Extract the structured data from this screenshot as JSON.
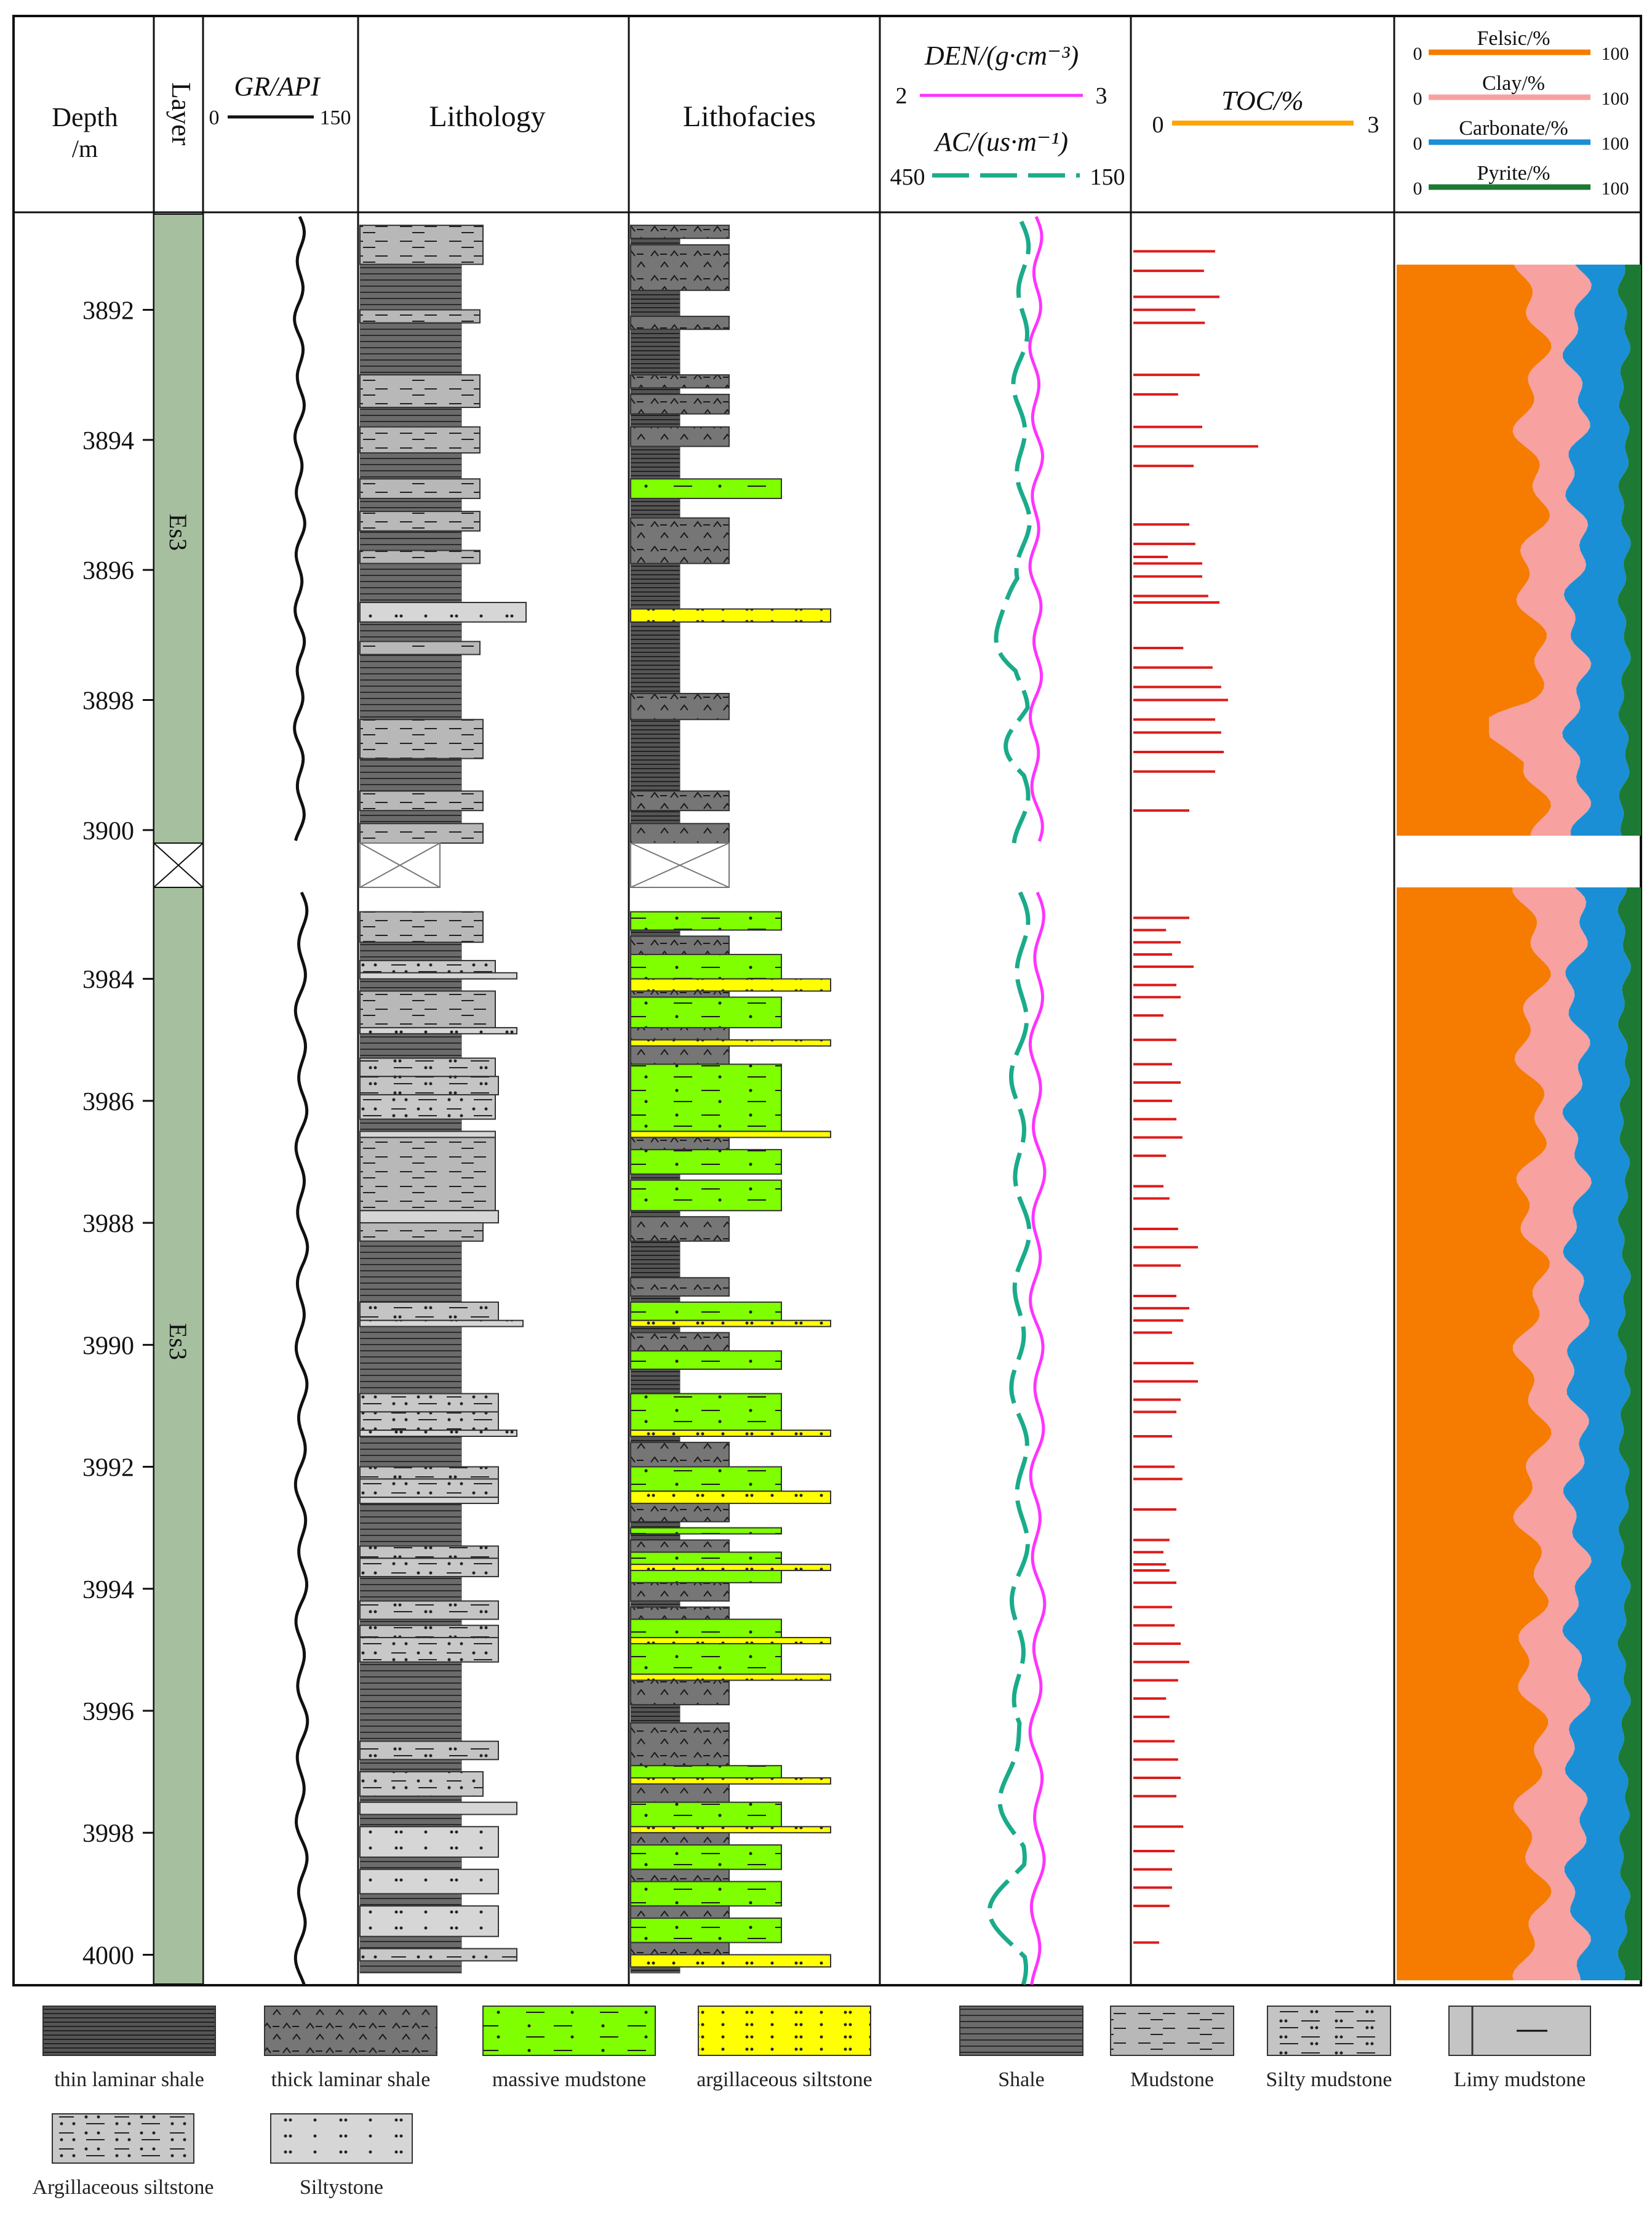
{
  "headers": {
    "depth": [
      "Depth",
      "/m"
    ],
    "layer": "Layer",
    "gr": {
      "label": "GR/API",
      "min": "0",
      "max": "150"
    },
    "lithology": "Lithology",
    "lithofacies": "Lithofacies",
    "den": {
      "label": "DEN/(g·cm⁻³)",
      "min": "2",
      "max": "3"
    },
    "ac": {
      "label": "AC/(us·m⁻¹)",
      "min": "450",
      "max": "150"
    },
    "toc": {
      "label": "TOC/%",
      "min": "0",
      "max": "3"
    },
    "minerals": [
      {
        "label": "Felsic/%",
        "min": "0",
        "max": "100",
        "color": "#f57c00"
      },
      {
        "label": "Clay/%",
        "min": "0",
        "max": "100",
        "color": "#f7a1a1"
      },
      {
        "label": "Carbonate/%",
        "min": "0",
        "max": "100",
        "color": "#1a8fd6"
      },
      {
        "label": "Pyrite/%",
        "min": "0",
        "max": "100",
        "color": "#1d7a34"
      }
    ]
  },
  "layers": [
    "Es3",
    "Es3"
  ],
  "depth_ticks_upper": [
    "3892",
    "3894",
    "3896",
    "3898",
    "3900"
  ],
  "depth_ticks_lower": [
    "3984",
    "3986",
    "3988",
    "3990",
    "3992",
    "3994",
    "3996",
    "3998",
    "4000"
  ],
  "legend": [
    {
      "label": "thin laminar shale",
      "type": "thin-laminar"
    },
    {
      "label": "thick laminar shale",
      "type": "thick-laminar"
    },
    {
      "label": "massive  mudstone",
      "type": "massive"
    },
    {
      "label": "argillaceous siltstone",
      "type": "arg-silt-facies"
    },
    {
      "label": "Shale",
      "type": "shale"
    },
    {
      "label": "Mudstone",
      "type": "mudstone"
    },
    {
      "label": "Silty mudstone",
      "type": "silty-mud"
    },
    {
      "label": "Limy mudstone",
      "type": "limy-mud"
    },
    {
      "label": "Argillaceous siltstone",
      "type": "arg-silt"
    },
    {
      "label": "Siltystone",
      "type": "siltstone"
    }
  ],
  "colors": {
    "layer_fill": "#a5bf9f",
    "shale": "#6b6b6b",
    "gray_light": "#b8b8b8",
    "massive": "#7fff00",
    "arg_silt": "#ffff00",
    "den_line": "#ff33ff",
    "ac_line": "#1aab8a",
    "toc_line": "#dd1b1b",
    "toc_header": "#ffa500"
  },
  "chart_data": {
    "type": "well-log",
    "intervals": [
      {
        "top": 3890.5,
        "base": 3900.2
      },
      {
        "top": 3982.5,
        "base": 4000.5
      }
    ],
    "toc": [
      {
        "depth": 3891.1,
        "toc": 0.95
      },
      {
        "depth": 3891.4,
        "toc": 0.82
      },
      {
        "depth": 3891.8,
        "toc": 1.0
      },
      {
        "depth": 3892.0,
        "toc": 0.72
      },
      {
        "depth": 3892.2,
        "toc": 0.83
      },
      {
        "depth": 3893.0,
        "toc": 0.77
      },
      {
        "depth": 3893.3,
        "toc": 0.52
      },
      {
        "depth": 3893.8,
        "toc": 0.8
      },
      {
        "depth": 3894.1,
        "toc": 1.45
      },
      {
        "depth": 3894.4,
        "toc": 0.7
      },
      {
        "depth": 3895.3,
        "toc": 0.65
      },
      {
        "depth": 3895.6,
        "toc": 0.72
      },
      {
        "depth": 3895.8,
        "toc": 0.4
      },
      {
        "depth": 3895.9,
        "toc": 0.8
      },
      {
        "depth": 3896.1,
        "toc": 0.8
      },
      {
        "depth": 3896.4,
        "toc": 0.87
      },
      {
        "depth": 3896.5,
        "toc": 1.0
      },
      {
        "depth": 3897.2,
        "toc": 0.58
      },
      {
        "depth": 3897.5,
        "toc": 0.92
      },
      {
        "depth": 3897.8,
        "toc": 1.02
      },
      {
        "depth": 3898.0,
        "toc": 1.1
      },
      {
        "depth": 3898.3,
        "toc": 0.95
      },
      {
        "depth": 3898.5,
        "toc": 1.02
      },
      {
        "depth": 3898.8,
        "toc": 1.05
      },
      {
        "depth": 3899.1,
        "toc": 0.95
      },
      {
        "depth": 3899.7,
        "toc": 0.65
      },
      {
        "depth": 3983.0,
        "toc": 0.65
      },
      {
        "depth": 3983.2,
        "toc": 0.38
      },
      {
        "depth": 3983.4,
        "toc": 0.55
      },
      {
        "depth": 3983.6,
        "toc": 0.45
      },
      {
        "depth": 3983.8,
        "toc": 0.7
      },
      {
        "depth": 3984.1,
        "toc": 0.5
      },
      {
        "depth": 3984.3,
        "toc": 0.55
      },
      {
        "depth": 3984.6,
        "toc": 0.35
      },
      {
        "depth": 3985.0,
        "toc": 0.5
      },
      {
        "depth": 3985.4,
        "toc": 0.45
      },
      {
        "depth": 3985.7,
        "toc": 0.55
      },
      {
        "depth": 3986.0,
        "toc": 0.45
      },
      {
        "depth": 3986.3,
        "toc": 0.5
      },
      {
        "depth": 3986.6,
        "toc": 0.57
      },
      {
        "depth": 3986.9,
        "toc": 0.38
      },
      {
        "depth": 3987.4,
        "toc": 0.35
      },
      {
        "depth": 3987.6,
        "toc": 0.42
      },
      {
        "depth": 3988.1,
        "toc": 0.52
      },
      {
        "depth": 3988.4,
        "toc": 0.75
      },
      {
        "depth": 3988.7,
        "toc": 0.55
      },
      {
        "depth": 3989.2,
        "toc": 0.5
      },
      {
        "depth": 3989.4,
        "toc": 0.65
      },
      {
        "depth": 3989.6,
        "toc": 0.58
      },
      {
        "depth": 3989.8,
        "toc": 0.45
      },
      {
        "depth": 3990.3,
        "toc": 0.7
      },
      {
        "depth": 3990.6,
        "toc": 0.75
      },
      {
        "depth": 3990.9,
        "toc": 0.55
      },
      {
        "depth": 3991.1,
        "toc": 0.5
      },
      {
        "depth": 3991.5,
        "toc": 0.45
      },
      {
        "depth": 3992.0,
        "toc": 0.48
      },
      {
        "depth": 3992.2,
        "toc": 0.57
      },
      {
        "depth": 3992.7,
        "toc": 0.5
      },
      {
        "depth": 3993.2,
        "toc": 0.42
      },
      {
        "depth": 3993.4,
        "toc": 0.35
      },
      {
        "depth": 3993.6,
        "toc": 0.38
      },
      {
        "depth": 3993.7,
        "toc": 0.42
      },
      {
        "depth": 3993.9,
        "toc": 0.5
      },
      {
        "depth": 3994.3,
        "toc": 0.45
      },
      {
        "depth": 3994.6,
        "toc": 0.48
      },
      {
        "depth": 3994.9,
        "toc": 0.55
      },
      {
        "depth": 3995.2,
        "toc": 0.65
      },
      {
        "depth": 3995.5,
        "toc": 0.52
      },
      {
        "depth": 3995.8,
        "toc": 0.38
      },
      {
        "depth": 3996.1,
        "toc": 0.42
      },
      {
        "depth": 3996.5,
        "toc": 0.48
      },
      {
        "depth": 3996.8,
        "toc": 0.52
      },
      {
        "depth": 3997.1,
        "toc": 0.55
      },
      {
        "depth": 3997.4,
        "toc": 0.5
      },
      {
        "depth": 3997.9,
        "toc": 0.58
      },
      {
        "depth": 3998.3,
        "toc": 0.48
      },
      {
        "depth": 3998.6,
        "toc": 0.45
      },
      {
        "depth": 3998.9,
        "toc": 0.45
      },
      {
        "depth": 3999.2,
        "toc": 0.42
      },
      {
        "depth": 3999.8,
        "toc": 0.3
      }
    ]
  }
}
